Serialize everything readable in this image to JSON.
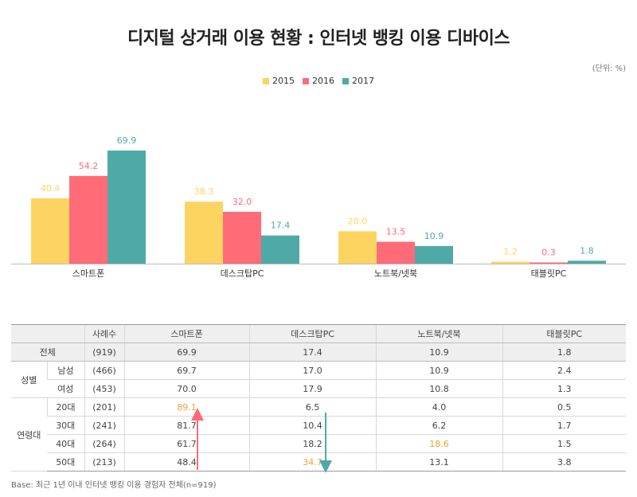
{
  "title": "디지털 상거래 이용 현황 : 인터넷 뱅킹 이용 디바이스",
  "unit": "(단위: %)",
  "colors": {
    "s2015": "#FDD462",
    "s2016": "#FF6B77",
    "s2017": "#4FAAA7",
    "highlight": "#E8A53A"
  },
  "chart_data": {
    "type": "bar",
    "categories": [
      "스마트폰",
      "데스크탑PC",
      "노트북/넷북",
      "태블릿PC"
    ],
    "series": [
      {
        "name": "2015",
        "values": [
          40.4,
          38.3,
          20.0,
          1.2
        ]
      },
      {
        "name": "2016",
        "values": [
          54.2,
          32.0,
          13.5,
          0.3
        ]
      },
      {
        "name": "2017",
        "values": [
          69.9,
          17.4,
          10.9,
          1.8
        ]
      }
    ],
    "value_labels": [
      [
        "40.4",
        "38.3",
        "20.0",
        "1.2"
      ],
      [
        "54.2",
        "32.0",
        "13.5",
        "0.3"
      ],
      [
        "69.9",
        "17.4",
        "10.9",
        "1.8"
      ]
    ],
    "ylim": [
      0,
      80
    ],
    "legend_position": "top-center",
    "grid": false
  },
  "table": {
    "headers": [
      "",
      "사례수",
      "스마트폰",
      "데스크탑PC",
      "노트북/넷북",
      "태블릿PC"
    ],
    "total": {
      "label": "전체",
      "n": "(919)",
      "values": [
        "69.9",
        "17.4",
        "10.9",
        "1.8"
      ]
    },
    "gender": {
      "label": "성별",
      "rows": [
        {
          "label": "남성",
          "n": "(466)",
          "values": [
            "69.7",
            "17.0",
            "10.9",
            "2.4"
          ]
        },
        {
          "label": "여성",
          "n": "(453)",
          "values": [
            "70.0",
            "17.9",
            "10.8",
            "1.3"
          ]
        }
      ]
    },
    "age": {
      "label": "연령대",
      "rows": [
        {
          "label": "20대",
          "n": "(201)",
          "values": [
            "89.1",
            "6.5",
            "4.0",
            "0.5"
          ]
        },
        {
          "label": "30대",
          "n": "(241)",
          "values": [
            "81.7",
            "10.4",
            "6.2",
            "1.7"
          ]
        },
        {
          "label": "40대",
          "n": "(264)",
          "values": [
            "61.7",
            "18.2",
            "18.6",
            "1.5"
          ]
        },
        {
          "label": "50대",
          "n": "(213)",
          "values": [
            "48.4",
            "34.7",
            "13.1",
            "3.8"
          ]
        }
      ]
    }
  },
  "base_note": "Base: 최근 1년 이내 인터넷 뱅킹 이용 경험자 전체(n=919)"
}
